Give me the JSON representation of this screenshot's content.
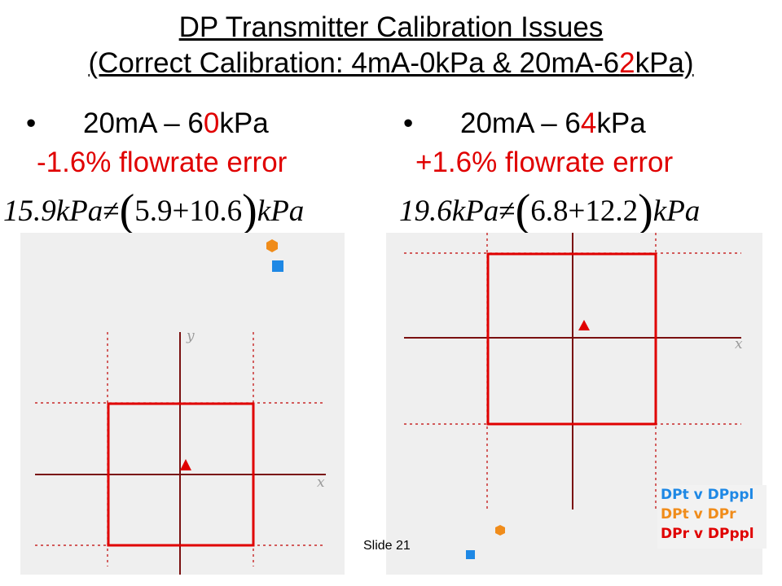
{
  "title": {
    "line1": "DP Transmitter Calibration Issues",
    "line2_pre": "(Correct Calibration: 4mA-0kPa & 20mA-6",
    "line2_hi": "2",
    "line2_post": "kPa)"
  },
  "left": {
    "bullet_dot": "•",
    "heading_pre": "20mA – 6",
    "heading_hi": "0",
    "heading_post": "kPa",
    "error": "-1.6% flowrate error",
    "eq_lhs": "15.9kPa",
    "eq_neq": "≠",
    "eq_open": "(",
    "eq_mid": "5.9+10.6",
    "eq_close": ")",
    "eq_unit": "kPa",
    "axis_x": "x",
    "axis_y": "y"
  },
  "right": {
    "bullet_dot": "•",
    "heading_pre": "20mA – 6",
    "heading_hi": "4",
    "heading_post": "kPa",
    "error": "+1.6% flowrate error",
    "eq_lhs": "19.6kPa",
    "eq_neq": "≠",
    "eq_open": "(",
    "eq_mid": "6.8+12.2",
    "eq_close": ")",
    "eq_unit": "kPa",
    "axis_x": "x"
  },
  "legend": {
    "items": [
      {
        "label": "DPt v DPppl",
        "color": "#1e88e5"
      },
      {
        "label": "DPt v DPr",
        "color": "#f08c1a"
      },
      {
        "label": "DPr v DPppl",
        "color": "#e00000"
      }
    ]
  },
  "slide_number": "Slide 21",
  "colors": {
    "accent_red": "#e00000",
    "axis": "#7a1010",
    "panel_bg": "#efefef",
    "blue_marker": "#1e88e5",
    "orange_marker": "#f08c1a"
  }
}
